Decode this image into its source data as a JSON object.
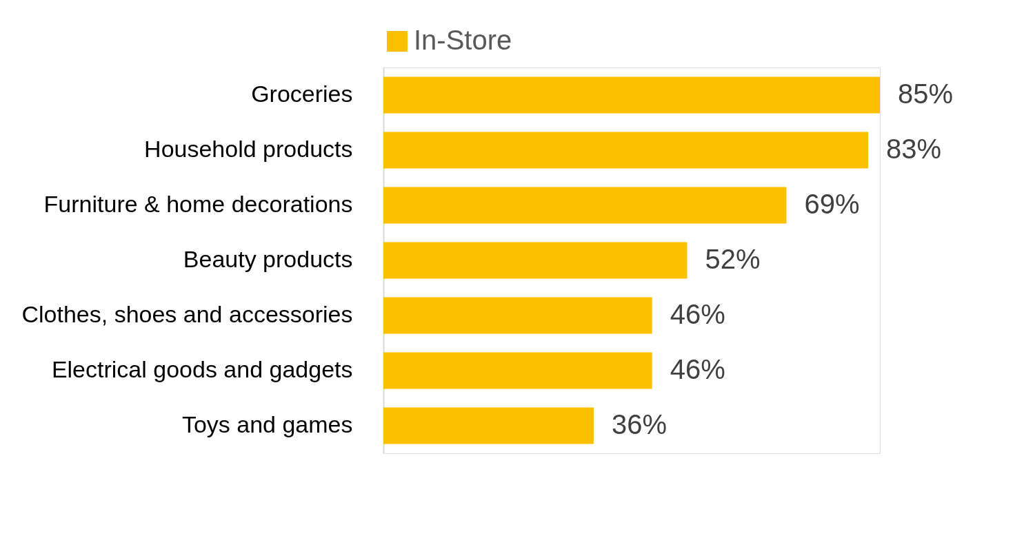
{
  "chart_data": {
    "type": "bar",
    "orientation": "horizontal",
    "legend": "top",
    "categories": [
      "Groceries",
      "Household products",
      "Furniture & home decorations",
      "Beauty products",
      "Clothes, shoes and accessories",
      "Electrical goods and gadgets",
      "Toys and games"
    ],
    "series": [
      {
        "name": "In-Store",
        "color": "#fcc000",
        "values": [
          85,
          83,
          69,
          52,
          46,
          46,
          36
        ],
        "value_labels": [
          "85%",
          "83%",
          "69%",
          "52%",
          "46%",
          "46%",
          "36%"
        ]
      }
    ]
  }
}
